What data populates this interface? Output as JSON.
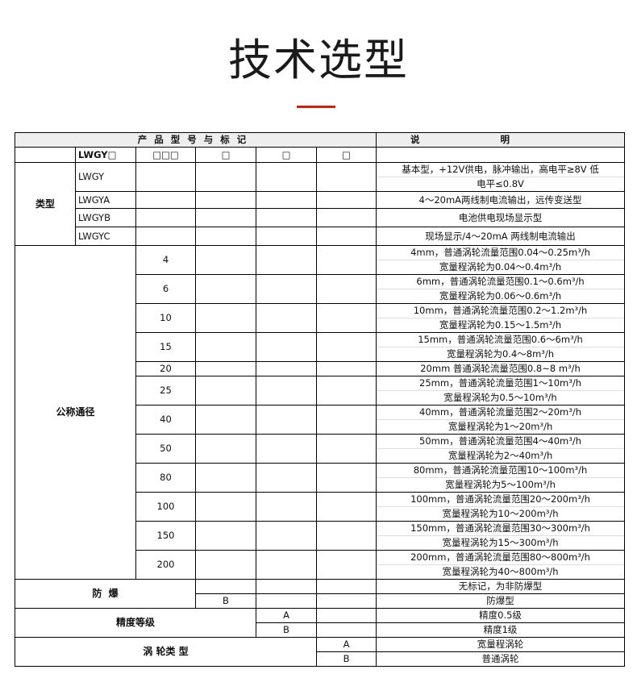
{
  "page": {
    "title": "技术选型",
    "accent": "#d81e06"
  },
  "table": {
    "header": {
      "product": "产品型号与标记",
      "desc": "说明"
    },
    "code_row": [
      "",
      "LWGY□",
      "□□□",
      "□",
      "□",
      "□"
    ],
    "type": {
      "label": "类型",
      "rows": [
        {
          "code": "LWGY",
          "desc": [
            "基本型，+12V供电，脉冲输出，高电平≥8V 低",
            "电平≤0.8V"
          ]
        },
        {
          "code": "LWGYA",
          "desc": [
            "4～20mA两线制电流输出，远传变送型"
          ]
        },
        {
          "code": "LWGYB",
          "desc": [
            "电池供电现场显示型"
          ]
        },
        {
          "code": "LWGYC",
          "desc": [
            "现场显示/4～20mA 两线制电流输出"
          ]
        }
      ]
    },
    "diameter": {
      "label": "公称通径",
      "rows": [
        {
          "value": "4",
          "desc": [
            "4mm，普通涡轮流量范围0.04～0.25m³/h",
            "宽量程涡轮为0.04～0.4m³/h"
          ]
        },
        {
          "value": "6",
          "desc": [
            "6mm，普通涡轮流量范围0.1～0.6m³/h",
            "宽量程涡轮为0.06～0.6m³/h"
          ]
        },
        {
          "value": "10",
          "desc": [
            "10mm，普通涡轮流量范围0.2～1.2m³/h",
            "宽量程涡轮为0.15～1.5m³/h"
          ]
        },
        {
          "value": "15",
          "desc": [
            "15mm，普通涡轮流量范围0.6～6m³/h",
            "宽量程涡轮为0.4～8m³/h"
          ]
        },
        {
          "value": "20",
          "desc": [
            "20mm    普通涡轮流量范围0.8~8 m³/h"
          ]
        },
        {
          "value": "25",
          "desc": [
            "25mm，普通涡轮流量范围1～10m³/h",
            "宽量程涡轮为0.5～10m³/h"
          ]
        },
        {
          "value": "40",
          "desc": [
            "40mm，普通涡轮流量范围2～20m³/h",
            "宽量程涡轮为1～20m³/h"
          ]
        },
        {
          "value": "50",
          "desc": [
            "50mm，普通涡轮流量范围4～40m³/h",
            "宽量程涡轮为2～40m³/h"
          ]
        },
        {
          "value": "80",
          "desc": [
            "80mm，普通涡轮流量范围10～100m³/h",
            "宽量程涡轮为5～100m³/h"
          ]
        },
        {
          "value": "100",
          "desc": [
            "100mm，普通涡轮流量范围20～200m³/h",
            "宽量程涡轮为10～200m³/h"
          ]
        },
        {
          "value": "150",
          "desc": [
            "150mm，普通涡轮流量范围30～300m³/h",
            "宽量程涡轮为15～300m³/h"
          ]
        },
        {
          "value": "200",
          "desc": [
            "200mm，普通涡轮流量范围80～800m³/h",
            "宽量程涡轮为40～800m³/h"
          ]
        }
      ]
    },
    "explosion": {
      "label": "防  爆",
      "rows": [
        {
          "code": "",
          "desc": "无标记，为非防爆型"
        },
        {
          "code": "B",
          "desc": "防爆型"
        }
      ]
    },
    "accuracy": {
      "label": "精度等级",
      "rows": [
        {
          "code": "A",
          "desc": "精度0.5级"
        },
        {
          "code": "B",
          "desc": "精度1级"
        }
      ]
    },
    "turbine": {
      "label": "涡 轮类 型",
      "rows": [
        {
          "code": "A",
          "desc": "宽量程涡轮"
        },
        {
          "code": "B",
          "desc": "普通涡轮"
        }
      ]
    }
  }
}
